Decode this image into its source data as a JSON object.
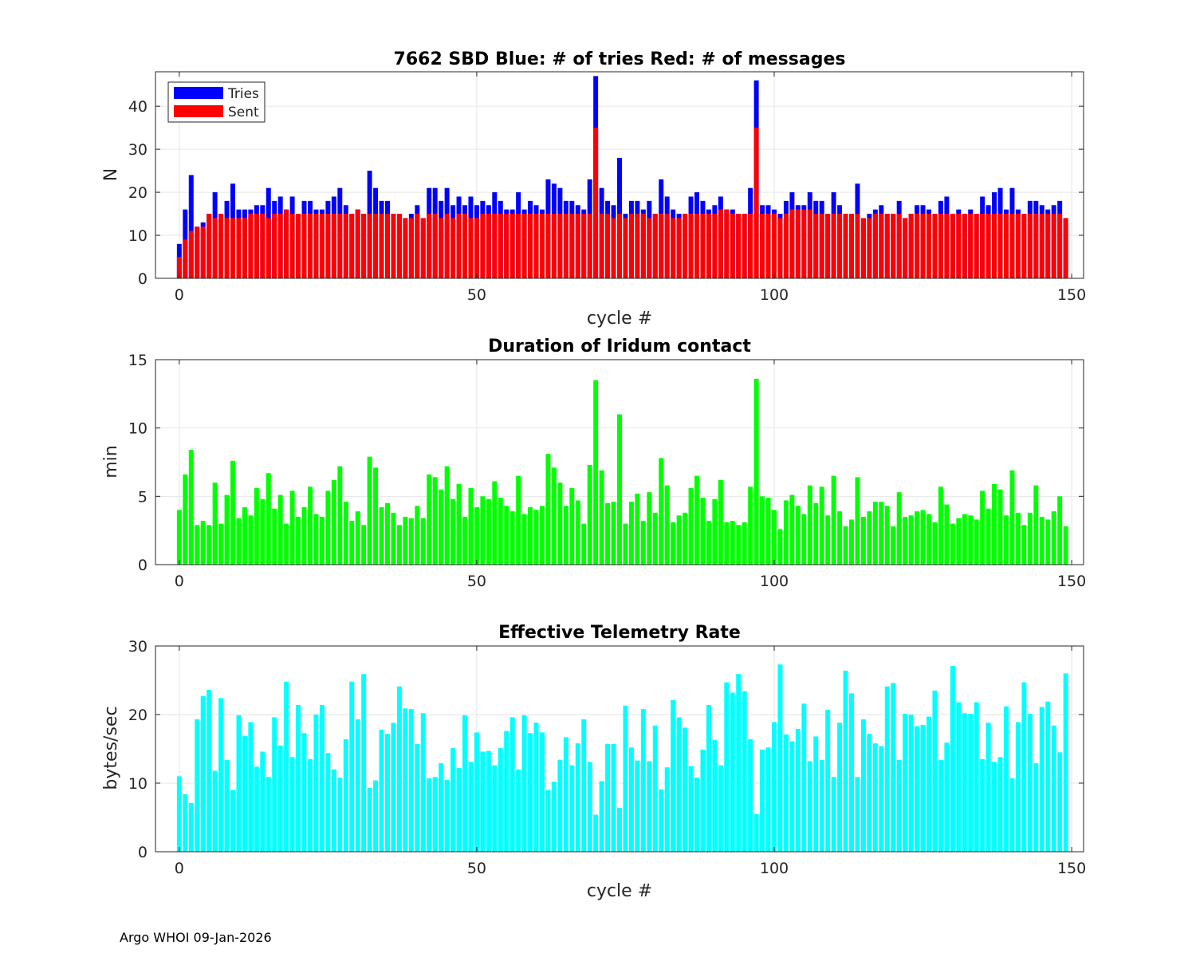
{
  "footer": "Argo WHOI 09-Jan-2026",
  "chart_data": [
    {
      "type": "bar",
      "title": "7662 SBD  Blue: # of tries   Red: # of messages",
      "xlabel": "cycle #",
      "ylabel": "N",
      "xlim": [
        -4,
        152
      ],
      "ylim": [
        0,
        48
      ],
      "xticks": [
        0,
        50,
        100,
        150
      ],
      "yticks": [
        0,
        10,
        20,
        30,
        40
      ],
      "legend": {
        "position": "top-left",
        "entries": [
          "Tries",
          "Sent"
        ]
      },
      "grid": true,
      "x_start": 0,
      "series": [
        {
          "name": "Tries",
          "color": "#0000ff",
          "values": [
            8,
            16,
            24,
            12,
            13,
            15,
            20,
            15,
            18,
            22,
            16,
            16,
            16,
            17,
            17,
            21,
            18,
            19,
            16,
            19,
            15,
            18,
            18,
            16,
            16,
            18,
            19,
            21,
            17,
            15,
            16,
            15,
            25,
            21,
            18,
            18,
            15,
            15,
            14,
            15,
            17,
            14,
            21,
            21,
            18,
            21,
            17,
            19,
            17,
            19,
            17,
            18,
            17,
            20,
            18,
            16,
            16,
            20,
            16,
            18,
            17,
            16,
            23,
            22,
            21,
            18,
            18,
            17,
            16,
            23,
            47,
            21,
            18,
            17,
            28,
            15,
            18,
            18,
            16,
            18,
            15,
            23,
            19,
            16,
            15,
            15,
            19,
            20,
            18,
            16,
            17,
            19,
            16,
            16,
            15,
            15,
            21,
            46,
            17,
            17,
            16,
            15,
            18,
            20,
            17,
            17,
            20,
            18,
            18,
            15,
            20,
            17,
            15,
            15,
            22,
            14,
            15,
            16,
            17,
            15,
            15,
            18,
            14,
            15,
            17,
            17,
            16,
            15,
            18,
            19,
            15,
            16,
            15,
            16,
            15,
            19,
            17,
            20,
            21,
            16,
            21,
            16,
            15,
            18,
            18,
            17,
            16,
            17,
            18,
            14
          ]
        },
        {
          "name": "Sent",
          "color": "#ff0000",
          "values": [
            5,
            9,
            11,
            12,
            12,
            15,
            14,
            15,
            14,
            14,
            14,
            14,
            15,
            15,
            15,
            14,
            15,
            15,
            16,
            15,
            15,
            15,
            15,
            15,
            15,
            15,
            15,
            15,
            15,
            15,
            16,
            15,
            15,
            15,
            15,
            15,
            15,
            15,
            14,
            14,
            15,
            14,
            15,
            15,
            14,
            15,
            14,
            15,
            15,
            14,
            14,
            15,
            15,
            15,
            15,
            15,
            15,
            15,
            15,
            15,
            15,
            15,
            15,
            15,
            15,
            15,
            15,
            15,
            15,
            15,
            35,
            15,
            15,
            14,
            15,
            14,
            15,
            15,
            15,
            14,
            15,
            15,
            15,
            14,
            14,
            15,
            15,
            15,
            15,
            15,
            15,
            16,
            16,
            15,
            15,
            15,
            15,
            35,
            15,
            15,
            15,
            14,
            15,
            16,
            16,
            16,
            16,
            15,
            15,
            15,
            15,
            15,
            15,
            15,
            15,
            14,
            14,
            15,
            15,
            15,
            15,
            15,
            14,
            15,
            15,
            15,
            15,
            15,
            15,
            15,
            15,
            15,
            15,
            15,
            15,
            15,
            15,
            15,
            15,
            15,
            15,
            15,
            15,
            15,
            15,
            15,
            15,
            15,
            15,
            14
          ]
        }
      ]
    },
    {
      "type": "bar",
      "title": "Duration of Iridum contact",
      "xlabel": "",
      "ylabel": "min",
      "xlim": [
        -4,
        152
      ],
      "ylim": [
        0,
        15
      ],
      "xticks": [
        0,
        50,
        100,
        150
      ],
      "yticks": [
        0,
        5,
        10,
        15
      ],
      "grid": true,
      "x_start": 0,
      "series": [
        {
          "name": "Duration",
          "color": "#00ff00",
          "values": [
            4.0,
            6.6,
            8.4,
            2.9,
            3.2,
            2.9,
            6.0,
            3.0,
            5.1,
            7.6,
            3.4,
            4.2,
            3.6,
            5.6,
            4.8,
            6.7,
            4.1,
            5.1,
            3.0,
            5.4,
            3.5,
            4.2,
            5.7,
            3.7,
            3.5,
            5.4,
            6.2,
            7.2,
            4.6,
            3.2,
            3.9,
            2.9,
            7.9,
            7.1,
            4.2,
            4.5,
            3.8,
            2.9,
            3.5,
            3.4,
            4.3,
            3.4,
            6.6,
            6.4,
            5.5,
            7.2,
            4.8,
            5.9,
            3.5,
            5.6,
            4.2,
            5.0,
            4.8,
            6.1,
            4.9,
            4.3,
            3.9,
            6.5,
            3.7,
            4.2,
            4.0,
            4.3,
            8.1,
            7.1,
            6.0,
            4.3,
            5.6,
            4.7,
            3.0,
            7.3,
            13.5,
            6.9,
            4.5,
            4.6,
            11.0,
            3.0,
            4.6,
            5.2,
            3.2,
            5.3,
            3.8,
            7.8,
            5.8,
            3.1,
            3.6,
            3.8,
            5.6,
            6.5,
            4.9,
            3.2,
            4.8,
            6.2,
            3.1,
            3.2,
            2.9,
            3.1,
            5.7,
            13.6,
            5.0,
            4.9,
            4.0,
            2.6,
            4.7,
            5.1,
            4.3,
            3.7,
            5.8,
            4.5,
            5.7,
            3.6,
            6.5,
            3.9,
            2.8,
            3.3,
            6.4,
            3.5,
            3.9,
            4.6,
            4.6,
            4.3,
            2.8,
            5.3,
            3.5,
            3.6,
            3.9,
            4.0,
            3.7,
            3.1,
            5.7,
            4.4,
            3.0,
            3.4,
            3.7,
            3.6,
            3.3,
            5.4,
            4.1,
            5.9,
            5.5,
            3.6,
            6.9,
            3.8,
            2.9,
            3.8,
            5.8,
            3.5,
            3.3,
            3.9,
            5.0,
            2.8
          ]
        }
      ]
    },
    {
      "type": "bar",
      "title": "Effective Telemetry Rate",
      "xlabel": "cycle #",
      "ylabel": "bytes/sec",
      "xlim": [
        -4,
        152
      ],
      "ylim": [
        0,
        30
      ],
      "xticks": [
        0,
        50,
        100,
        150
      ],
      "yticks": [
        0,
        10,
        20,
        30
      ],
      "grid": true,
      "x_start": 0,
      "series": [
        {
          "name": "Rate",
          "color": "#00ffff",
          "values": [
            11.0,
            8.4,
            7.1,
            19.3,
            22.7,
            23.6,
            11.8,
            22.4,
            13.4,
            9.0,
            19.9,
            16.9,
            18.9,
            12.4,
            14.6,
            10.9,
            19.6,
            15.5,
            24.8,
            13.8,
            21.4,
            17.3,
            13.5,
            20.0,
            21.4,
            14.4,
            12.0,
            10.8,
            16.4,
            24.8,
            19.3,
            25.9,
            9.3,
            10.4,
            17.8,
            17.2,
            18.8,
            24.1,
            20.9,
            20.8,
            15.7,
            20.2,
            10.7,
            10.9,
            12.9,
            10.5,
            15.1,
            12.2,
            19.9,
            13.1,
            17.4,
            14.6,
            14.7,
            12.6,
            15.1,
            17.6,
            19.6,
            12.0,
            19.9,
            17.3,
            18.8,
            17.4,
            9.0,
            10.2,
            13.4,
            16.7,
            12.6,
            15.8,
            19.3,
            13.1,
            5.4,
            10.3,
            15.7,
            15.7,
            6.4,
            21.3,
            15.2,
            13.3,
            20.8,
            13.2,
            18.4,
            9.1,
            12.3,
            22.1,
            19.6,
            18.1,
            12.5,
            10.8,
            14.9,
            21.4,
            16.3,
            12.6,
            24.7,
            23.2,
            25.9,
            23.4,
            16.4,
            5.5,
            14.9,
            15.2,
            18.9,
            27.3,
            17.1,
            16.1,
            17.9,
            21.6,
            13.2,
            16.8,
            13.4,
            20.7,
            10.9,
            18.8,
            26.4,
            23.1,
            10.9,
            19.3,
            17.2,
            15.8,
            15.4,
            24.1,
            24.6,
            13.4,
            20.1,
            20.0,
            18.3,
            18.5,
            19.7,
            23.5,
            13.4,
            15.9,
            27.1,
            21.8,
            20.2,
            20.1,
            21.8,
            13.5,
            18.8,
            13.1,
            13.8,
            21.2,
            10.7,
            18.9,
            24.7,
            20.1,
            12.9,
            21.1,
            21.9,
            18.4,
            14.5,
            26.0
          ]
        }
      ]
    }
  ]
}
